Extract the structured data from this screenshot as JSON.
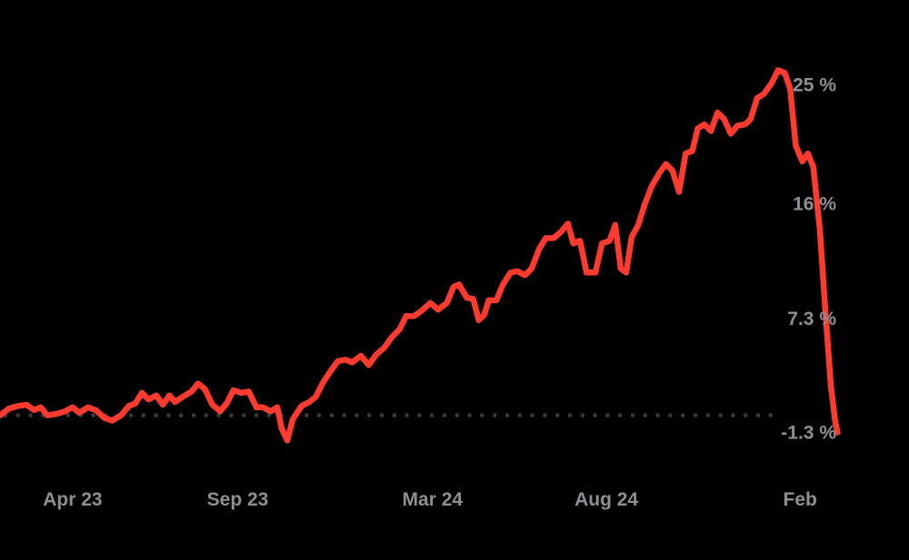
{
  "colors": {
    "background": "#000000",
    "line": "#ff3b30",
    "baseline_dots": "#3a3a3c",
    "tick_text": "#8e8e93"
  },
  "chart_data": {
    "type": "line",
    "title": "",
    "xlabel": "",
    "ylabel": "",
    "y_unit": "%",
    "baseline": 0,
    "baseline_style": "dotted",
    "grid": false,
    "legend": "none",
    "y_axis_side": "right",
    "ylim": [
      -2.5,
      27.5
    ],
    "xlim": [
      "2023-02-05",
      "2025-03-10"
    ],
    "x_ticks": [
      {
        "label": "Apr 23",
        "x": "2023-04-12"
      },
      {
        "label": "Sep 23",
        "x": "2023-09-09"
      },
      {
        "label": "Mar 24",
        "x": "2024-03-04"
      },
      {
        "label": "Aug 24",
        "x": "2024-08-09"
      },
      {
        "label": "Feb",
        "x": "2025-02-01"
      }
    ],
    "y_ticks": [
      {
        "label": "25 %",
        "value": 25
      },
      {
        "label": "16 %",
        "value": 16
      },
      {
        "label": "7.3 %",
        "value": 7.3
      },
      {
        "label": "-1.3 %",
        "value": -1.3
      }
    ],
    "series": [
      {
        "values": [
          [
            "2023-02-05",
            0.0
          ],
          [
            "2023-02-13",
            0.5
          ],
          [
            "2023-02-21",
            0.7
          ],
          [
            "2023-03-01",
            0.8
          ],
          [
            "2023-03-08",
            0.4
          ],
          [
            "2023-03-14",
            0.6
          ],
          [
            "2023-03-20",
            0.0
          ],
          [
            "2023-03-28",
            0.1
          ],
          [
            "2023-04-05",
            0.3
          ],
          [
            "2023-04-12",
            0.6
          ],
          [
            "2023-04-18",
            0.2
          ],
          [
            "2023-04-26",
            0.6
          ],
          [
            "2023-05-03",
            0.4
          ],
          [
            "2023-05-11",
            -0.2
          ],
          [
            "2023-05-18",
            -0.4
          ],
          [
            "2023-05-26",
            0.0
          ],
          [
            "2023-06-02",
            0.7
          ],
          [
            "2023-06-08",
            0.9
          ],
          [
            "2023-06-14",
            1.7
          ],
          [
            "2023-06-20",
            1.2
          ],
          [
            "2023-06-27",
            1.5
          ],
          [
            "2023-07-03",
            0.8
          ],
          [
            "2023-07-09",
            1.5
          ],
          [
            "2023-07-14",
            1.0
          ],
          [
            "2023-07-21",
            1.4
          ],
          [
            "2023-07-29",
            1.8
          ],
          [
            "2023-08-04",
            2.4
          ],
          [
            "2023-08-10",
            2.0
          ],
          [
            "2023-08-17",
            0.8
          ],
          [
            "2023-08-24",
            0.3
          ],
          [
            "2023-08-30",
            0.9
          ],
          [
            "2023-09-05",
            1.9
          ],
          [
            "2023-09-12",
            1.7
          ],
          [
            "2023-09-19",
            1.8
          ],
          [
            "2023-09-26",
            0.6
          ],
          [
            "2023-10-02",
            0.6
          ],
          [
            "2023-10-09",
            0.3
          ],
          [
            "2023-10-15",
            0.6
          ],
          [
            "2023-10-19",
            -1.0
          ],
          [
            "2023-10-24",
            -1.9
          ],
          [
            "2023-10-29",
            -0.3
          ],
          [
            "2023-11-06",
            0.7
          ],
          [
            "2023-11-13",
            1.0
          ],
          [
            "2023-11-19",
            1.4
          ],
          [
            "2023-11-25",
            2.4
          ],
          [
            "2023-12-02",
            3.3
          ],
          [
            "2023-12-09",
            4.1
          ],
          [
            "2023-12-16",
            4.2
          ],
          [
            "2023-12-22",
            4.0
          ],
          [
            "2023-12-30",
            4.5
          ],
          [
            "2024-01-06",
            3.8
          ],
          [
            "2024-01-13",
            4.6
          ],
          [
            "2024-01-20",
            5.1
          ],
          [
            "2024-01-27",
            5.9
          ],
          [
            "2024-02-03",
            6.5
          ],
          [
            "2024-02-09",
            7.5
          ],
          [
            "2024-02-16",
            7.5
          ],
          [
            "2024-02-23",
            7.9
          ],
          [
            "2024-03-02",
            8.5
          ],
          [
            "2024-03-09",
            8.0
          ],
          [
            "2024-03-17",
            8.5
          ],
          [
            "2024-03-23",
            9.7
          ],
          [
            "2024-03-28",
            9.9
          ],
          [
            "2024-04-04",
            8.9
          ],
          [
            "2024-04-10",
            8.8
          ],
          [
            "2024-04-15",
            7.2
          ],
          [
            "2024-04-20",
            7.6
          ],
          [
            "2024-04-24",
            8.7
          ],
          [
            "2024-05-01",
            8.7
          ],
          [
            "2024-05-07",
            9.9
          ],
          [
            "2024-05-14",
            10.8
          ],
          [
            "2024-05-20",
            10.9
          ],
          [
            "2024-05-27",
            10.6
          ],
          [
            "2024-06-02",
            11.1
          ],
          [
            "2024-06-09",
            12.6
          ],
          [
            "2024-06-15",
            13.4
          ],
          [
            "2024-06-22",
            13.4
          ],
          [
            "2024-06-29",
            13.9
          ],
          [
            "2024-07-05",
            14.5
          ],
          [
            "2024-07-10",
            13.0
          ],
          [
            "2024-07-16",
            13.2
          ],
          [
            "2024-07-22",
            10.8
          ],
          [
            "2024-07-30",
            10.8
          ],
          [
            "2024-08-05",
            13.0
          ],
          [
            "2024-08-12",
            13.2
          ],
          [
            "2024-08-17",
            14.4
          ],
          [
            "2024-08-22",
            11.1
          ],
          [
            "2024-08-27",
            10.8
          ],
          [
            "2024-09-01",
            13.5
          ],
          [
            "2024-09-07",
            14.4
          ],
          [
            "2024-09-13",
            16.0
          ],
          [
            "2024-09-19",
            17.3
          ],
          [
            "2024-09-26",
            18.3
          ],
          [
            "2024-10-02",
            19.0
          ],
          [
            "2024-10-08",
            18.5
          ],
          [
            "2024-10-14",
            16.9
          ],
          [
            "2024-10-20",
            19.8
          ],
          [
            "2024-10-26",
            20.0
          ],
          [
            "2024-10-31",
            21.7
          ],
          [
            "2024-11-06",
            22.0
          ],
          [
            "2024-11-12",
            21.5
          ],
          [
            "2024-11-18",
            22.9
          ],
          [
            "2024-11-24",
            22.4
          ],
          [
            "2024-11-30",
            21.3
          ],
          [
            "2024-12-06",
            21.9
          ],
          [
            "2024-12-13",
            22.0
          ],
          [
            "2024-12-18",
            22.4
          ],
          [
            "2024-12-24",
            24.0
          ],
          [
            "2024-12-30",
            24.3
          ],
          [
            "2025-01-06",
            25.1
          ],
          [
            "2025-01-12",
            26.1
          ],
          [
            "2025-01-18",
            25.9
          ],
          [
            "2025-01-23",
            24.7
          ],
          [
            "2025-01-28",
            20.4
          ],
          [
            "2025-02-03",
            19.2
          ],
          [
            "2025-02-08",
            19.8
          ],
          [
            "2025-02-13",
            18.8
          ],
          [
            "2025-02-19",
            14.0
          ],
          [
            "2025-02-24",
            7.9
          ],
          [
            "2025-03-01",
            2.2
          ],
          [
            "2025-03-05",
            -0.5
          ],
          [
            "2025-03-07",
            -1.3
          ]
        ]
      }
    ]
  }
}
